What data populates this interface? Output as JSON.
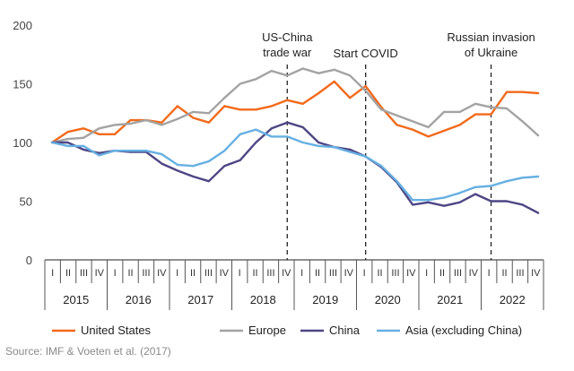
{
  "chart_data": {
    "type": "line",
    "y_ticks": [
      0,
      50,
      100,
      150,
      200
    ],
    "ylim": [
      0,
      200
    ],
    "quarter_labels": [
      "I",
      "II",
      "III",
      "IV"
    ],
    "years": [
      "2015",
      "2016",
      "2017",
      "2018",
      "2019",
      "2020",
      "2021",
      "2022"
    ],
    "grid": false,
    "legend_position": "bottom",
    "annotations": [
      {
        "x": 15,
        "lines": [
          "US-China",
          "trade war"
        ]
      },
      {
        "x": 20,
        "lines": [
          "Start COVID"
        ]
      },
      {
        "x": 28,
        "lines": [
          "Russian invasion",
          "of Ukraine"
        ]
      }
    ],
    "series": [
      {
        "name": "United States",
        "color": "#F26A1B",
        "values": [
          100,
          109,
          112,
          107,
          107,
          119,
          119,
          117,
          131,
          121,
          117,
          131,
          128,
          128,
          131,
          136,
          133,
          142,
          152,
          138,
          148,
          130,
          115,
          111,
          105,
          110,
          115,
          124,
          124,
          143,
          143,
          142
        ]
      },
      {
        "name": "Europe",
        "color": "#A3A3A3",
        "values": [
          100,
          103,
          104,
          112,
          115,
          116,
          119,
          115,
          120,
          126,
          125,
          138,
          150,
          154,
          161,
          157,
          163,
          159,
          162,
          157,
          144,
          128,
          123,
          118,
          113,
          126,
          126,
          133,
          130,
          129,
          118,
          106
        ]
      },
      {
        "name": "China",
        "color": "#4D4685",
        "values": [
          100,
          100,
          94,
          91,
          93,
          92,
          92,
          82,
          76,
          71,
          67,
          80,
          85,
          100,
          112,
          117,
          113,
          100,
          96,
          94,
          88,
          79,
          66,
          47,
          49,
          46,
          49,
          56,
          50,
          50,
          47,
          40
        ]
      },
      {
        "name": "Asia (excluding China)",
        "color": "#66B0E2",
        "values": [
          100,
          97,
          97,
          89,
          93,
          93,
          93,
          90,
          81,
          80,
          84,
          93,
          107,
          111,
          105,
          105,
          100,
          97,
          96,
          92,
          88,
          80,
          67,
          51,
          51,
          53,
          57,
          62,
          63,
          67,
          70,
          71
        ]
      }
    ]
  },
  "source_text": "Source: IMF & Voeten et al. (2017)"
}
